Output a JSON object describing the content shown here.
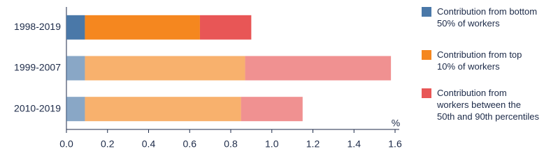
{
  "chart_data": {
    "type": "stacked-barh",
    "categories": [
      "1998-2019",
      "1999-2007",
      "2010-2019"
    ],
    "series": [
      {
        "name": "Contribution from bottom 50% of workers",
        "color": "#4a78a8",
        "values": [
          0.09,
          0.09,
          0.09
        ]
      },
      {
        "name": "Contribution from top 10% of workers",
        "color": "#f5871f",
        "values": [
          0.56,
          0.78,
          0.76
        ]
      },
      {
        "name": "Contribution from workers between the 50th and 90th percentiles",
        "color": "#e85656",
        "values": [
          0.25,
          0.71,
          0.3
        ]
      }
    ],
    "x_label": "%",
    "xlim": [
      0,
      1.6
    ],
    "xticks": [
      {
        "value": 0,
        "label": "0.0"
      },
      0.2,
      0.4,
      0.6,
      0.8,
      {
        "value": 1,
        "label": "1.0"
      },
      1.2,
      1.4,
      1.6
    ]
  }
}
